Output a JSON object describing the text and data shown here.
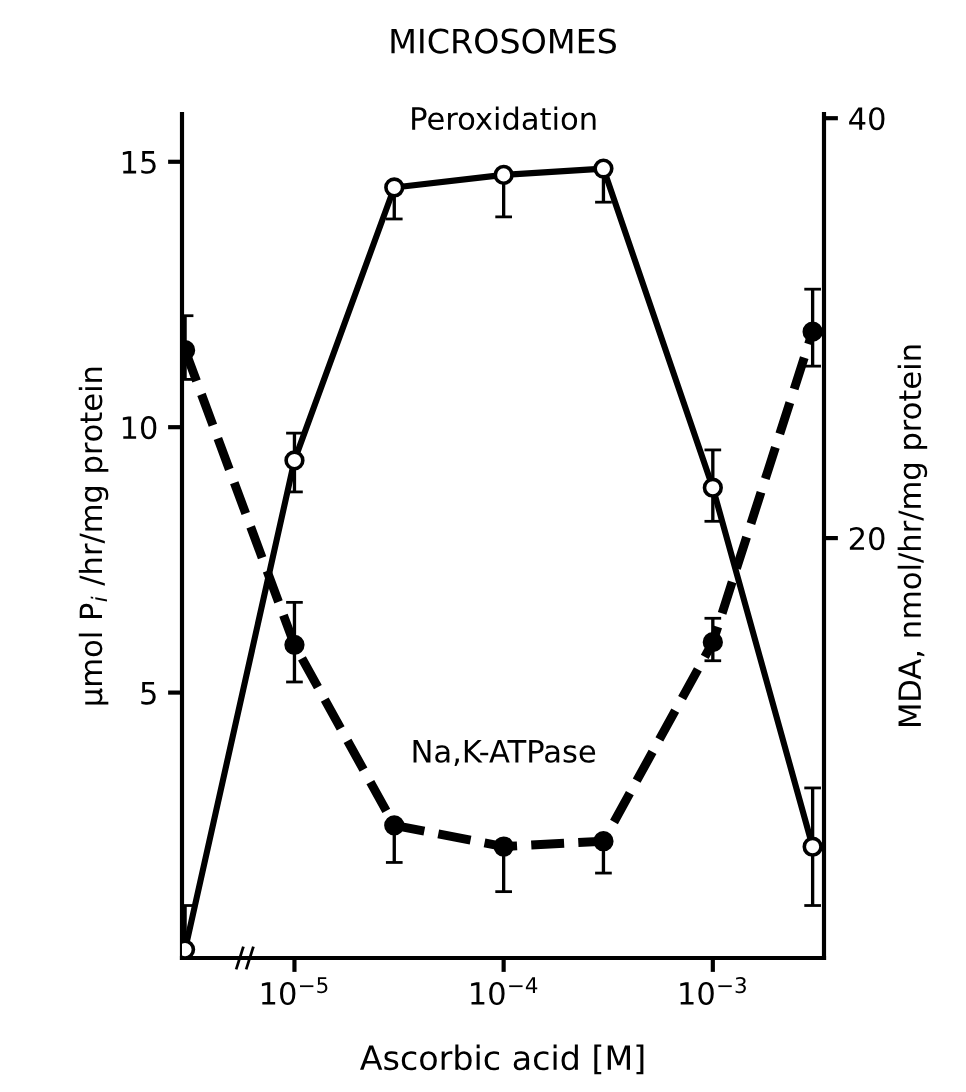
{
  "chart_data": {
    "type": "line",
    "title": "MICROSOMES",
    "xlabel": "Ascorbic acid [M]",
    "ylabel": "μmol P$_{i}$ /hr/mg protein",
    "y2label": "MDA, nmol/hr/mg protein",
    "log": "x",
    "xlim": [
      2.9e-06,
      0.0034
    ],
    "xticks": [
      {
        "value": 1e-05,
        "label": "10$^{−5}$"
      },
      {
        "value": 0.0001,
        "label": "10$^{−4}$"
      },
      {
        "value": 0.001,
        "label": "10$^{−3}$"
      }
    ],
    "ylim": [
      0,
      15.9
    ],
    "yticks": [
      5,
      10,
      15
    ],
    "y2lim": [
      0,
      40.2
    ],
    "y2ticks": [
      20,
      40
    ],
    "x": [
      3e-06,
      1e-05,
      3e-05,
      0.0001,
      0.0003,
      0.001,
      0.003
    ],
    "series": [
      {
        "name": "Peroxidation",
        "color": "#000000",
        "axis": "y2",
        "marker": "circle",
        "line_style": "solid",
        "values": [
          0.4,
          23.7,
          36.7,
          37.3,
          37.6,
          22.4,
          5.3
        ],
        "errors": [
          [
            0.4,
            2.5
          ],
          [
            22.2,
            25.0
          ],
          [
            35.2,
            36.7
          ],
          [
            35.3,
            37.3
          ],
          [
            36.0,
            37.6
          ],
          [
            20.8,
            24.2
          ],
          [
            2.5,
            8.1
          ]
        ]
      },
      {
        "name": "Na,K-ATPase",
        "color": "#000000",
        "axis": "y",
        "marker": "circle",
        "line_style": "dashed",
        "values": [
          11.45,
          5.9,
          2.5,
          2.1,
          2.2,
          5.95,
          11.8
        ],
        "errors": [
          [
            10.9,
            12.1
          ],
          [
            5.2,
            6.7
          ],
          [
            1.8,
            2.5
          ],
          [
            1.25,
            2.1
          ],
          [
            1.6,
            2.2
          ],
          [
            5.6,
            6.4
          ],
          [
            11.15,
            12.6
          ]
        ]
      }
    ],
    "grid": false,
    "legend": false
  }
}
